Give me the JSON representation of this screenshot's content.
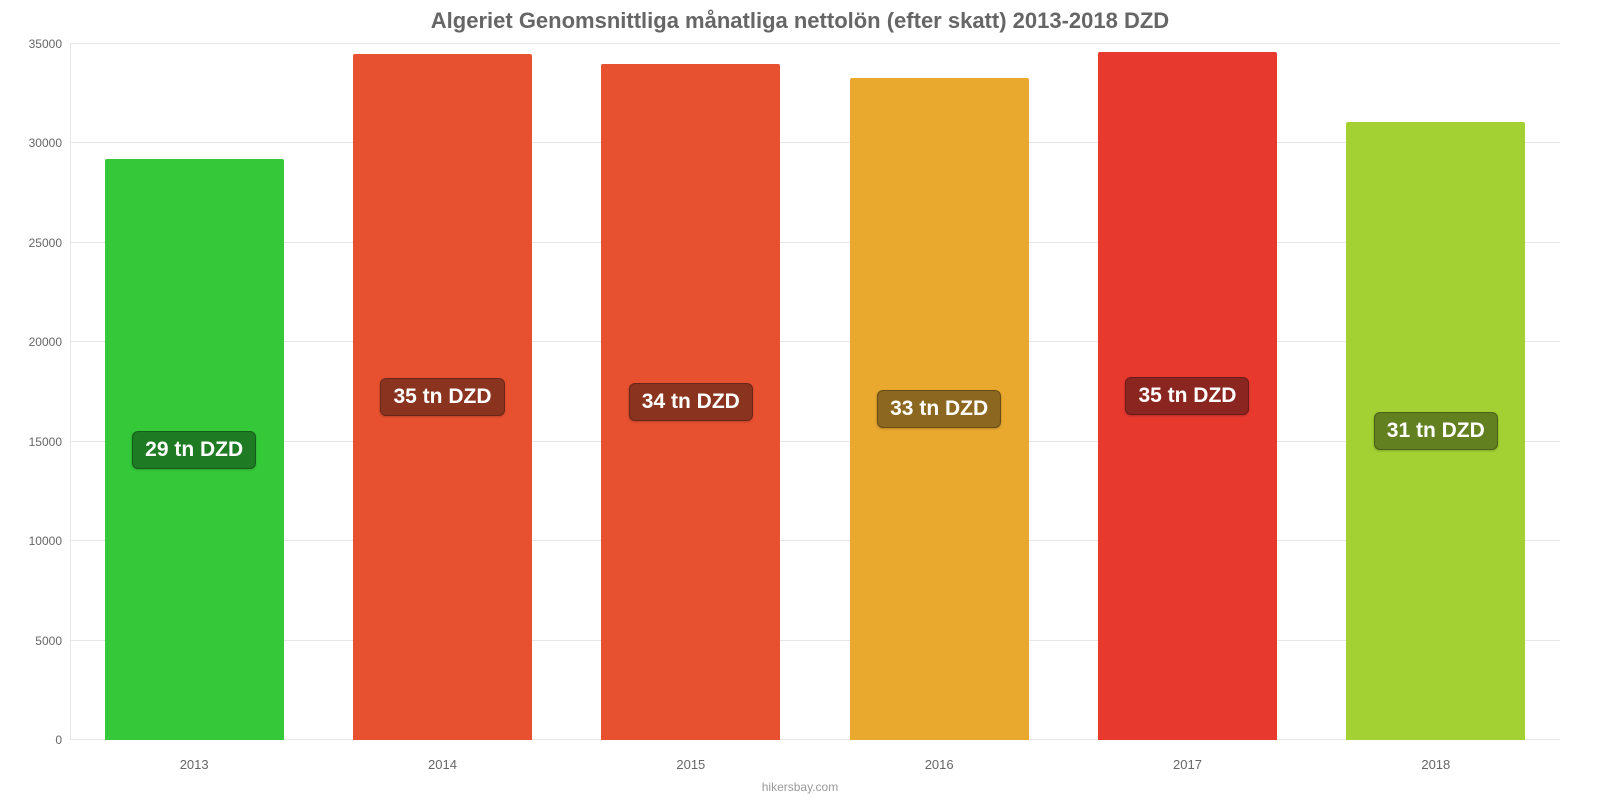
{
  "chart": {
    "type": "bar",
    "title": "Algeriet Genomsnittliga månatliga nettolön (efter skatt) 2013-2018 DZD",
    "title_fontsize": 22,
    "title_color": "#666666",
    "background_color": "#ffffff",
    "grid_color": "#e6e6e6",
    "axis_color": "#919191",
    "tick_label_color": "#666666",
    "tick_label_fontsize": 12,
    "x_tick_fontsize": 13,
    "ylim": [
      0,
      35000
    ],
    "yticks": [
      0,
      5000,
      10000,
      15000,
      20000,
      25000,
      30000,
      35000
    ],
    "categories": [
      "2013",
      "2014",
      "2015",
      "2016",
      "2017",
      "2018"
    ],
    "values": [
      29200,
      34500,
      34000,
      33300,
      34600,
      31100
    ],
    "bar_colors": [
      "#35c93a",
      "#e85130",
      "#e85130",
      "#e9a82e",
      "#e8392f",
      "#a3d133"
    ],
    "bar_width_pct": 72,
    "bar_labels": [
      "29 tn DZD",
      "35 tn DZD",
      "34 tn DZD",
      "33 tn DZD",
      "35 tn DZD",
      "31 tn DZD"
    ],
    "bar_label_fontsize": 21,
    "bar_label_badge_colors": [
      "#1e7a23",
      "#8a3420",
      "#8a3420",
      "#8c671f",
      "#8b2520",
      "#628020"
    ],
    "bar_label_y_offset_pct": 50,
    "attribution": "hikersbay.com",
    "attribution_color": "#999999",
    "attribution_fontsize": 12
  }
}
